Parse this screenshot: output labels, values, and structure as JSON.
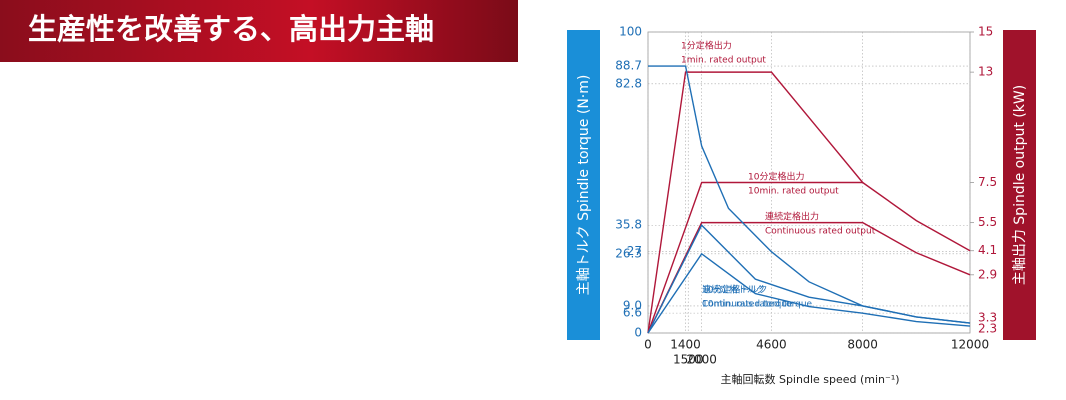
{
  "header": {
    "title": "生産性を改善する、高出力主軸"
  },
  "chart_data": {
    "type": "line",
    "y_label": "主軸トルク Spindle torque (N·m)",
    "y2_label": "主軸出力 Spindle output (kW)",
    "x_label": "主軸回転数 Spindle speed (min⁻¹)",
    "xlim": [
      0,
      12000
    ],
    "xticks": [
      0,
      1400,
      1500,
      2000,
      4600,
      8000,
      12000
    ],
    "ylim": [
      0,
      100
    ],
    "yticks": [
      0,
      6.6,
      {
        "value": 9,
        "label": "9.0"
      },
      26.3,
      27,
      35.8,
      82.8,
      88.7,
      100
    ],
    "y2lim": [
      0,
      15
    ],
    "y2ticks": [
      2.9,
      4.1,
      5.5,
      7.5,
      13,
      15
    ],
    "torque_end_labels": [
      3.3,
      2.3
    ],
    "grid": true,
    "series": [
      {
        "label": "1分定格出力",
        "label_en": "1min. rated output",
        "color": "#b0173a",
        "axis": "y2",
        "x": [
          0,
          1400,
          4600,
          8000
        ],
        "values": [
          0,
          13,
          13,
          7.5
        ]
      },
      {
        "label": "10分定格出力",
        "label_en": "10min. rated output",
        "color": "#b0173a",
        "axis": "y2",
        "x": [
          0,
          2000,
          8000,
          10000,
          12000
        ],
        "values": [
          0,
          7.5,
          7.5,
          5.6,
          4.1
        ]
      },
      {
        "label": "連続定格出力",
        "label_en": "Continuous rated output",
        "color": "#b0173a",
        "axis": "y2",
        "x": [
          0,
          2000,
          8000,
          10000,
          12000
        ],
        "values": [
          0,
          5.5,
          5.5,
          4.0,
          2.9
        ]
      },
      {
        "color": "#1f6fb5",
        "axis": "y",
        "x": [
          0,
          1400,
          2000,
          3000,
          4600,
          6000,
          8000,
          10000,
          12000
        ],
        "values": [
          88.7,
          88.7,
          62.1,
          41.4,
          27,
          17,
          9,
          5.35,
          3.3
        ]
      },
      {
        "label": "10分定格トルク",
        "label_en": "10min. rated torque",
        "color": "#1f6fb5",
        "axis": "y",
        "x": [
          0,
          2000,
          4000,
          6000,
          8000,
          10000,
          12000
        ],
        "values": [
          0,
          35.8,
          17.9,
          11.9,
          9,
          5.35,
          3.3
        ]
      },
      {
        "label": "連続定格トルク",
        "label_en": "Continuous rated torque",
        "color": "#1f6fb5",
        "axis": "y",
        "x": [
          0,
          2000,
          4000,
          6000,
          8000,
          10000,
          12000
        ],
        "values": [
          0,
          26.3,
          13.1,
          8.8,
          6.6,
          3.8,
          2.3
        ]
      }
    ]
  }
}
